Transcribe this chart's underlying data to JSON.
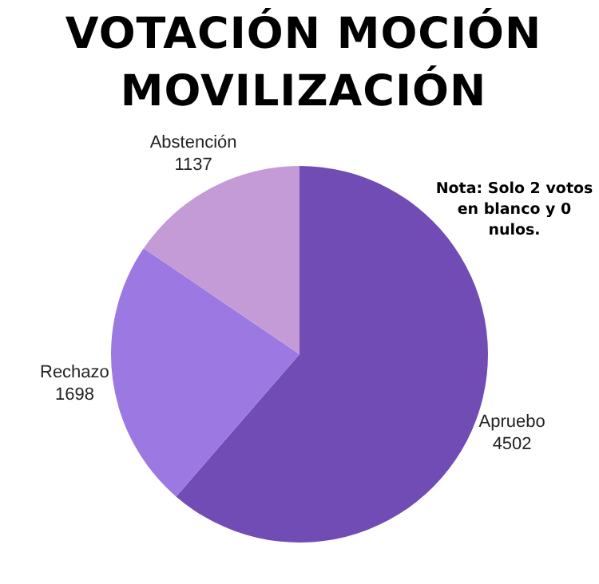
{
  "chart_data": {
    "type": "pie",
    "title": "VOTACIÓN MOCIÓN MOVILIZACIÓN",
    "categories": [
      "Apruebo",
      "Rechazo",
      "Abstención"
    ],
    "values": [
      4502,
      1698,
      1137
    ],
    "colors": [
      "#704cb4",
      "#9b78e2",
      "#c49bd6"
    ],
    "data_labels": true,
    "annotations": [
      "Nota: Solo 2 votos en blanco y 0 nulos."
    ]
  }
}
